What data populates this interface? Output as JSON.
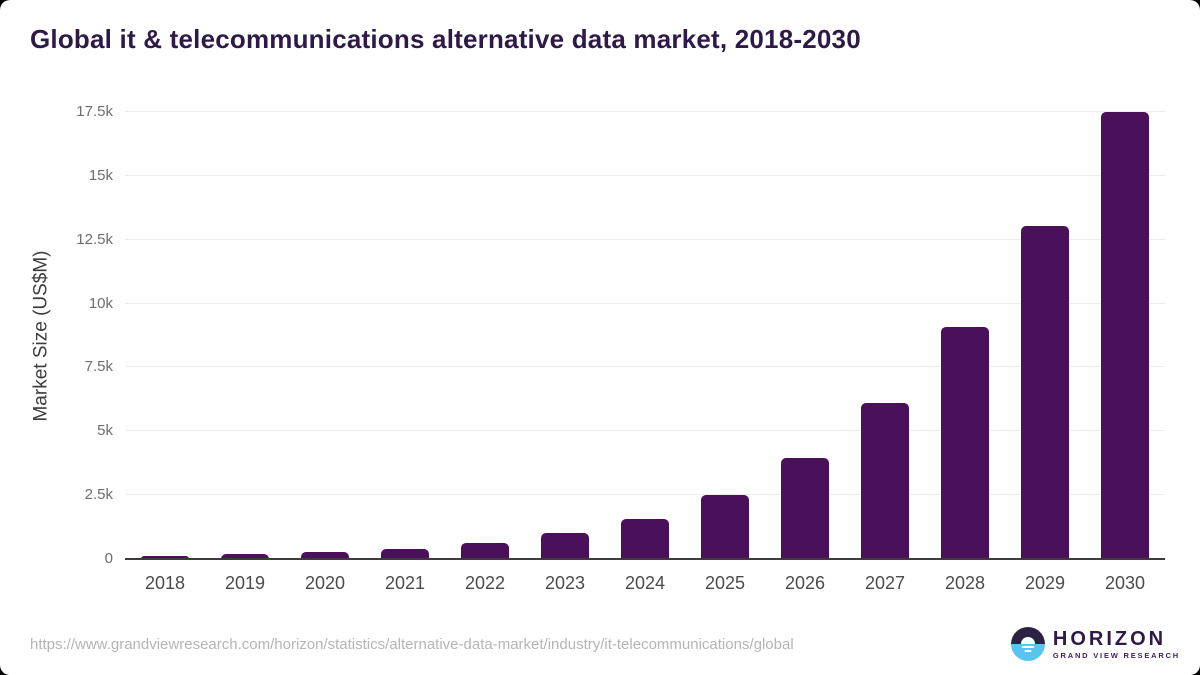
{
  "page": {
    "title": "Global it & telecommunications alternative data market, 2018-2030",
    "source_url": "https://www.grandviewresearch.com/horizon/statistics/alternative-data-market/industry/it-telecommunications/global"
  },
  "branding": {
    "logo_name": "HORIZON",
    "logo_subtitle": "GRAND VIEW RESEARCH",
    "logo_icon": "sun-over-horizon-icon"
  },
  "colors": {
    "bar": "#4a1059",
    "title": "#2e1a47",
    "gridline": "#ececec",
    "baseline": "#3c3c3c",
    "url_text": "#b5b5b5",
    "logo_dark": "#2d2145",
    "logo_blue": "#56c5f2"
  },
  "chart_data": {
    "type": "bar",
    "title": "Global it & telecommunications alternative data market, 2018-2030",
    "categories": [
      "2018",
      "2019",
      "2020",
      "2021",
      "2022",
      "2023",
      "2024",
      "2025",
      "2026",
      "2027",
      "2028",
      "2029",
      "2030"
    ],
    "values": [
      110,
      180,
      260,
      400,
      610,
      1010,
      1570,
      2500,
      3940,
      6090,
      9090,
      13040,
      17490
    ],
    "xlabel": "",
    "ylabel": "Market Size (US$M)",
    "ylim": [
      0,
      17500
    ],
    "ytick_step": 2500,
    "ytick_labels": [
      "0",
      "2.5k",
      "5k",
      "7.5k",
      "10k",
      "12.5k",
      "15k",
      "17.5k"
    ],
    "grid": true,
    "legend_position": "none",
    "bar_color": "#4a1059"
  }
}
